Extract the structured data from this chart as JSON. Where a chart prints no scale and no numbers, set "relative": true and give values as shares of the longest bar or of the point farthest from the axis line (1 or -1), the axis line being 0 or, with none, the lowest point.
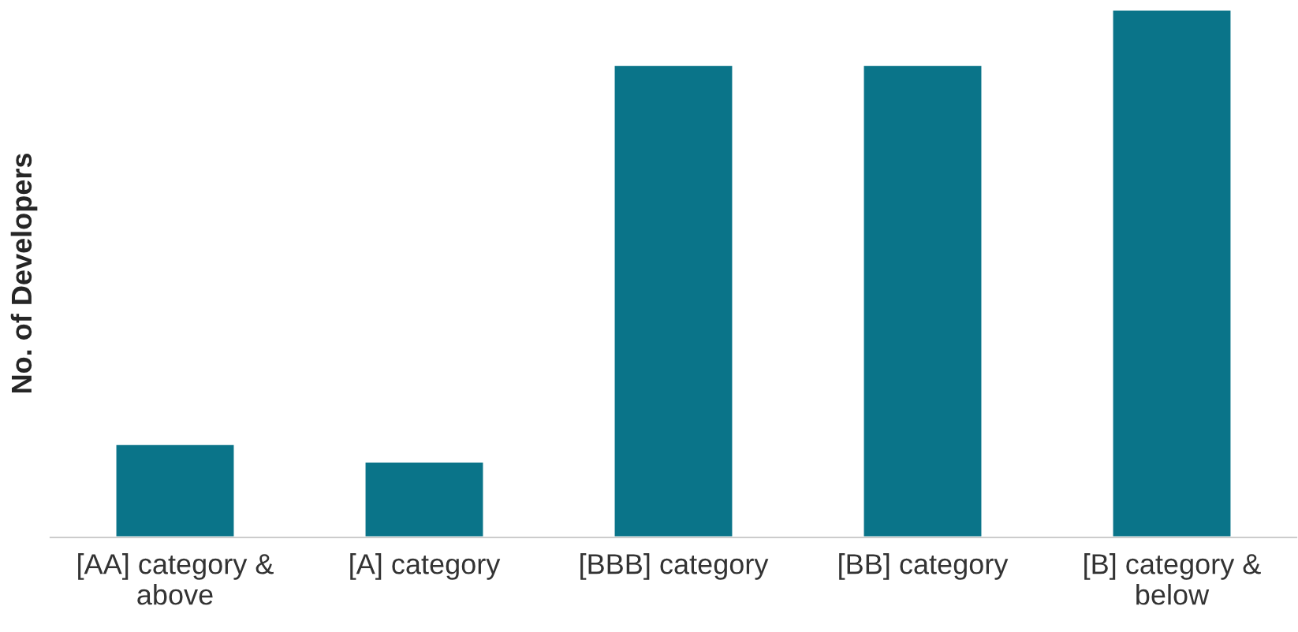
{
  "chart_data": {
    "type": "bar",
    "relative": true,
    "ylabel": "No. of Developers",
    "categories": [
      "[AA] category & above",
      "[A] category",
      "[BBB] category",
      "[BB] category",
      "[B] category & below"
    ],
    "values": [
      0.177,
      0.144,
      0.895,
      0.895,
      1.0
    ],
    "color": "#0a7489",
    "grid": false,
    "legend": false
  }
}
